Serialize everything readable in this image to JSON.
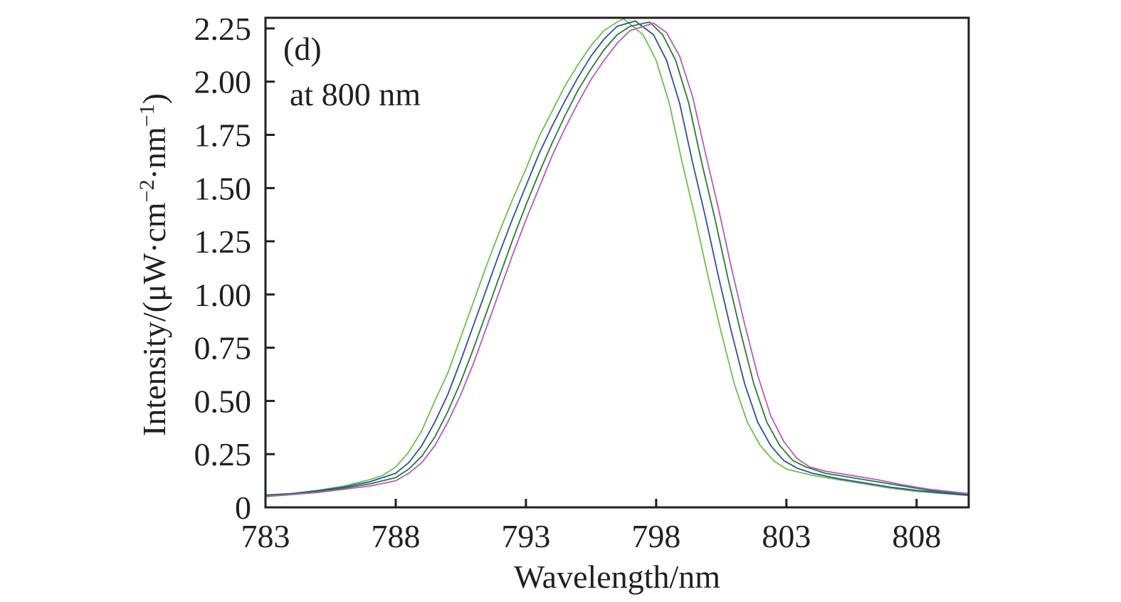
{
  "chart_data": {
    "type": "line",
    "panel_label": "(d)",
    "annotation": "at 800 nm",
    "xlabel": "Wavelength/nm",
    "ylabel_main": "Intensity/(μW·cm",
    "ylabel_exp1": "−2",
    "ylabel_mid": "·nm",
    "ylabel_exp2": "−1",
    "ylabel_end": ")",
    "xlim": [
      783,
      810
    ],
    "ylim": [
      0,
      2.3
    ],
    "xticks": [
      783,
      788,
      793,
      798,
      803,
      808
    ],
    "xtick_labels": [
      "783",
      "788",
      "793",
      "798",
      "803",
      "808"
    ],
    "yticks": [
      0,
      0.25,
      0.5,
      0.75,
      1.0,
      1.25,
      1.5,
      1.75,
      2.0,
      2.25
    ],
    "ytick_labels": [
      "0",
      "0.25",
      "0.50",
      "0.75",
      "1.00",
      "1.25",
      "1.50",
      "1.75",
      "2.00",
      "2.25"
    ],
    "grid": false,
    "legend": "none",
    "series": [
      {
        "name": "curve-1",
        "color": "#6cc04a",
        "x": [
          783,
          784,
          785,
          786,
          787,
          787.5,
          788,
          788.5,
          789,
          789.5,
          790,
          790.5,
          791,
          791.5,
          792,
          792.5,
          793,
          793.5,
          794,
          794.5,
          795,
          795.5,
          796,
          796.5,
          796.75,
          797.5,
          798,
          798.5,
          799,
          799.5,
          800,
          800.5,
          801,
          801.5,
          802,
          802.5,
          803,
          804,
          805,
          806,
          807,
          808,
          809,
          810
        ],
        "y": [
          0.055,
          0.065,
          0.08,
          0.1,
          0.13,
          0.15,
          0.19,
          0.26,
          0.36,
          0.5,
          0.63,
          0.8,
          0.97,
          1.14,
          1.3,
          1.45,
          1.59,
          1.74,
          1.86,
          1.98,
          2.08,
          2.17,
          2.24,
          2.28,
          2.295,
          2.22,
          2.1,
          1.9,
          1.62,
          1.36,
          1.08,
          0.82,
          0.58,
          0.4,
          0.29,
          0.22,
          0.18,
          0.15,
          0.13,
          0.11,
          0.09,
          0.075,
          0.065,
          0.055
        ]
      },
      {
        "name": "curve-2",
        "color": "#2e4fa0",
        "x": [
          783,
          784,
          785,
          786,
          787,
          788,
          788.5,
          789,
          789.5,
          790,
          790.5,
          791,
          791.5,
          792,
          792.5,
          793,
          793.5,
          794,
          794.5,
          795,
          795.5,
          796,
          796.5,
          797.2,
          797.9,
          798.4,
          798.9,
          799.4,
          799.9,
          800.4,
          800.9,
          801.4,
          801.9,
          802.4,
          802.9,
          803.4,
          804,
          805,
          806,
          807,
          808,
          809,
          810
        ],
        "y": [
          0.058,
          0.065,
          0.078,
          0.095,
          0.12,
          0.16,
          0.21,
          0.29,
          0.4,
          0.53,
          0.69,
          0.86,
          1.03,
          1.2,
          1.36,
          1.51,
          1.66,
          1.79,
          1.91,
          2.02,
          2.12,
          2.2,
          2.26,
          2.285,
          2.22,
          2.1,
          1.9,
          1.62,
          1.36,
          1.08,
          0.82,
          0.58,
          0.4,
          0.29,
          0.22,
          0.185,
          0.16,
          0.135,
          0.115,
          0.095,
          0.08,
          0.068,
          0.058
        ]
      },
      {
        "name": "curve-3",
        "color": "#2a7a35",
        "x": [
          783,
          784,
          785,
          786,
          787,
          788,
          788.5,
          789,
          789.5,
          790,
          790.5,
          791,
          791.5,
          792,
          792.5,
          793,
          793.5,
          794,
          794.5,
          795,
          795.5,
          796,
          796.5,
          797,
          797.75,
          798.25,
          798.75,
          799.25,
          799.75,
          800.25,
          800.75,
          801.25,
          801.75,
          802.25,
          802.75,
          803.25,
          803.75,
          804.5,
          805.5,
          806.5,
          807.5,
          808.5,
          810
        ],
        "y": [
          0.058,
          0.064,
          0.075,
          0.09,
          0.11,
          0.14,
          0.18,
          0.24,
          0.33,
          0.45,
          0.59,
          0.75,
          0.92,
          1.09,
          1.26,
          1.42,
          1.57,
          1.71,
          1.84,
          1.96,
          2.06,
          2.15,
          2.22,
          2.26,
          2.28,
          2.22,
          2.1,
          1.9,
          1.62,
          1.36,
          1.08,
          0.82,
          0.58,
          0.4,
          0.29,
          0.22,
          0.19,
          0.16,
          0.14,
          0.12,
          0.1,
          0.08,
          0.062
        ]
      },
      {
        "name": "curve-4",
        "color": "#b35ac2",
        "x": [
          783,
          784,
          785,
          786,
          787,
          788,
          788.5,
          789,
          789.5,
          790,
          790.5,
          791,
          791.5,
          792,
          792.5,
          793,
          793.5,
          794,
          794.5,
          795,
          795.5,
          796,
          796.5,
          797,
          797.9,
          798.4,
          798.9,
          799.4,
          799.9,
          800.4,
          800.9,
          801.4,
          801.9,
          802.4,
          802.9,
          803.4,
          803.9,
          804.5,
          805.5,
          806.5,
          807.5,
          808.5,
          810
        ],
        "y": [
          0.05,
          0.06,
          0.07,
          0.085,
          0.1,
          0.125,
          0.16,
          0.21,
          0.29,
          0.4,
          0.53,
          0.68,
          0.85,
          1.02,
          1.19,
          1.35,
          1.5,
          1.65,
          1.78,
          1.9,
          2.01,
          2.1,
          2.18,
          2.24,
          2.275,
          2.23,
          2.12,
          1.93,
          1.66,
          1.4,
          1.12,
          0.86,
          0.62,
          0.43,
          0.31,
          0.23,
          0.19,
          0.17,
          0.15,
          0.13,
          0.105,
          0.085,
          0.065
        ]
      }
    ]
  }
}
